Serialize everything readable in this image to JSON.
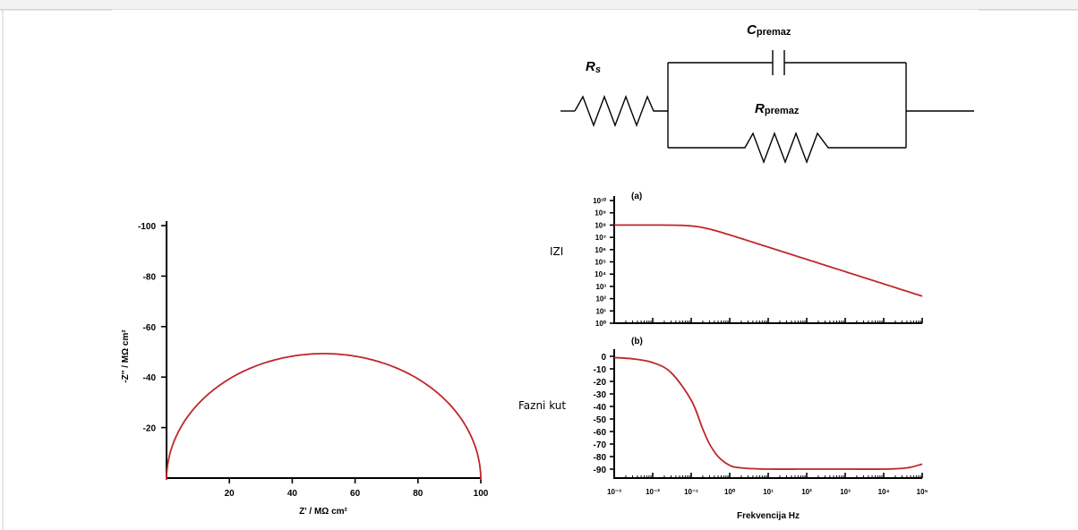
{
  "circuit": {
    "rs_main": "R",
    "rs_sub": "s",
    "c_main": "C",
    "c_sub": "premaz",
    "r_main": "R",
    "r_sub": "premaz"
  },
  "chart_data": [
    {
      "type": "line",
      "title": "",
      "xlabel": "Z' / MΩ cm²",
      "ylabel": "-Z'' / MΩ cm²",
      "xlim": [
        0,
        100
      ],
      "ylim": [
        0,
        -100
      ],
      "x_ticks": [
        "20",
        "40",
        "60",
        "80",
        "100"
      ],
      "y_ticks": [
        "-100",
        "-80",
        "-60",
        "-40",
        "-20"
      ],
      "series": [
        {
          "x": [
            0,
            5,
            10,
            20,
            30,
            40,
            50,
            60,
            70,
            80,
            90,
            95,
            100
          ],
          "y": [
            0,
            -21.8,
            -30,
            -40,
            -45.8,
            -49,
            -50,
            -49,
            -45.8,
            -40,
            -30,
            -21.8,
            0
          ]
        }
      ]
    },
    {
      "type": "line",
      "panel": "(a)",
      "ylabel": "IZI",
      "xscale": "log",
      "yscale": "log",
      "xlim": [
        0.001,
        100000
      ],
      "ylim": [
        1,
        10000000000
      ],
      "y_ticks": [
        "10¹⁰",
        "10⁹",
        "10⁸",
        "10⁷",
        "10⁶",
        "10⁵",
        "10⁴",
        "10³",
        "10²",
        "10¹",
        "10⁰"
      ],
      "series": [
        {
          "x": [
            0.001,
            0.01,
            0.1,
            1,
            10,
            100,
            1000,
            10000,
            100000
          ],
          "y": [
            100000000,
            100000000,
            60000000,
            16000000,
            1600000,
            160000,
            16000,
            1600,
            160
          ]
        }
      ]
    },
    {
      "type": "line",
      "panel": "(b)",
      "xlabel": "Frekvencija Hz",
      "ylabel": "Fazni kut",
      "xscale": "log",
      "xlim": [
        0.001,
        100000
      ],
      "ylim": [
        -95,
        5
      ],
      "x_ticks": [
        "10⁻³",
        "10⁻²",
        "10⁻¹",
        "10⁰",
        "10¹",
        "10²",
        "10³",
        "10⁴",
        "10⁵"
      ],
      "y_ticks": [
        "0",
        "-10",
        "-20",
        "-30",
        "-40",
        "-50",
        "-60",
        "-70",
        "-80",
        "-90"
      ],
      "series": [
        {
          "x": [
            0.001,
            0.003,
            0.01,
            0.03,
            0.1,
            0.2,
            0.3,
            0.5,
            1,
            2,
            10,
            100,
            1000,
            10000,
            40000,
            100000
          ],
          "y": [
            -1,
            -2,
            -5,
            -13,
            -35,
            -58,
            -70,
            -80,
            -87,
            -89,
            -90,
            -90,
            -90,
            -90,
            -89,
            -86
          ]
        }
      ]
    }
  ]
}
